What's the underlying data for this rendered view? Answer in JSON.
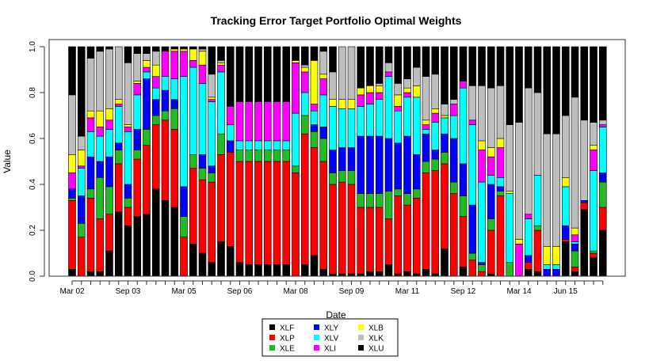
{
  "chart_data": {
    "type": "stacked_bar",
    "title": "Tracking Error Target Portfolio Optimal Weights",
    "x_label": "Date",
    "y_label": "Value",
    "categories": [
      "Mar 02",
      null,
      null,
      null,
      null,
      null,
      "Sep 03",
      null,
      null,
      null,
      null,
      null,
      "Mar 05",
      null,
      null,
      null,
      null,
      null,
      "Sep 06",
      null,
      null,
      null,
      null,
      null,
      "Mar 08",
      null,
      null,
      null,
      null,
      null,
      "Sep 09",
      null,
      null,
      null,
      null,
      null,
      "Mar 11",
      null,
      null,
      null,
      null,
      null,
      "Sep 12",
      null,
      null,
      null,
      null,
      null,
      "Mar 14",
      null,
      null,
      null,
      null,
      "Jun 15",
      null,
      null,
      null,
      null
    ],
    "ylim": [
      0,
      1
    ],
    "yticks": [
      {
        "value": 0,
        "label": "0.0"
      },
      0.2,
      0.4,
      0.6,
      0.8,
      {
        "value": 1,
        "label": "1.0"
      }
    ],
    "legend": "bottom",
    "series": [
      {
        "name": "XLF",
        "color": "#000000",
        "values": [
          0.03,
          0,
          0.02,
          0.02,
          0.11,
          0.28,
          0.22,
          0.26,
          0.27,
          0.38,
          0.33,
          0.3,
          0,
          0.14,
          0.1,
          0.06,
          0.15,
          0.13,
          0.06,
          0.05,
          0.05,
          0.05,
          0.05,
          0.05,
          0,
          0.05,
          0.09,
          0.03,
          0.01,
          0.01,
          0.01,
          0.01,
          0.02,
          0.02,
          0.05,
          0.01,
          0.02,
          0.01,
          0.03,
          0.01,
          0.12,
          0,
          0.04,
          0,
          0,
          0.01,
          0,
          0,
          0,
          0.03,
          0.02,
          0,
          0,
          0.15,
          0.02,
          0.29,
          0.08,
          0.2
        ]
      },
      {
        "name": "XLP",
        "color": "#ff0000",
        "values": [
          0.3,
          0.17,
          0.32,
          0.23,
          0.16,
          0.21,
          0.08,
          0.25,
          0.3,
          0.28,
          0.35,
          0.34,
          0.17,
          0.33,
          0.32,
          0.35,
          0.38,
          0.41,
          0.44,
          0.45,
          0.45,
          0.45,
          0.45,
          0.45,
          0.45,
          0.57,
          0.47,
          0.47,
          0.39,
          0.4,
          0.39,
          0.29,
          0.28,
          0.28,
          0.2,
          0.34,
          0.29,
          0.33,
          0.42,
          0.45,
          0.37,
          0.36,
          0.22,
          0.07,
          0.02,
          0.19,
          0.35,
          0,
          0,
          0.03,
          0.18,
          0,
          0,
          0.01,
          0.02,
          0.03,
          0.02,
          0.1
        ]
      },
      {
        "name": "XLE",
        "color": "#22bb22",
        "values": [
          0.01,
          0.06,
          0.04,
          0.18,
          0.12,
          0.06,
          0.04,
          0.04,
          0.07,
          0.04,
          0.04,
          0.09,
          0.09,
          0.06,
          0.05,
          0.04,
          0.09,
          0,
          0.05,
          0.05,
          0.05,
          0.05,
          0.05,
          0.05,
          0.03,
          0.08,
          0.07,
          0.1,
          0.05,
          0.05,
          0.06,
          0.06,
          0.06,
          0.06,
          0.12,
          0.03,
          0.05,
          0.04,
          0.05,
          0.05,
          0.05,
          0.05,
          0.09,
          0.03,
          0.03,
          0.05,
          0.02,
          0.06,
          0,
          0,
          0.02,
          0,
          0,
          0,
          0.07,
          0,
          0.01,
          0.11
        ]
      },
      {
        "name": "XLY",
        "color": "#0000ff",
        "values": [
          0.04,
          0.12,
          0.14,
          0.07,
          0.13,
          0.03,
          0.06,
          0.09,
          0.22,
          0.07,
          0.09,
          0.04,
          0.13,
          0,
          0.06,
          0.03,
          0,
          0.05,
          0,
          0,
          0,
          0,
          0,
          0,
          0,
          0,
          0.03,
          0.05,
          0.1,
          0.1,
          0.1,
          0.25,
          0.25,
          0.25,
          0.23,
          0.2,
          0.25,
          0.15,
          0.12,
          0.04,
          0.08,
          0.19,
          0.14,
          0.21,
          0.01,
          0.15,
          0.02,
          0,
          0,
          0.03,
          0,
          0.03,
          0.03,
          0.06,
          0.03,
          0.01,
          0,
          0.04
        ]
      },
      {
        "name": "XLV",
        "color": "#00ffff",
        "values": [
          0,
          0.12,
          0.11,
          0.11,
          0.12,
          0.16,
          0.23,
          0.15,
          0.03,
          0.05,
          0.06,
          0.09,
          0.48,
          0.38,
          0.31,
          0.28,
          0.27,
          0.07,
          0.04,
          0.04,
          0.04,
          0.04,
          0.04,
          0.04,
          0.23,
          0.1,
          0.06,
          0.14,
          0.19,
          0.17,
          0.17,
          0.13,
          0.14,
          0.16,
          0.27,
          0.14,
          0.17,
          0.25,
          0.02,
          0.12,
          0.07,
          0.1,
          0.33,
          0.35,
          0.35,
          0.04,
          0.04,
          0.3,
          0,
          0.16,
          0.22,
          0.02,
          0.02,
          0.17,
          0.01,
          0,
          0.35,
          0.2
        ]
      },
      {
        "name": "XLI",
        "color": "#ff00ff",
        "values": [
          0.07,
          0.01,
          0.06,
          0.04,
          0.04,
          0.01,
          0.02,
          0.05,
          0.02,
          0.05,
          0.11,
          0.12,
          0.11,
          0.03,
          0.08,
          0.01,
          0.03,
          0.08,
          0.17,
          0.17,
          0.17,
          0.17,
          0.17,
          0.17,
          0.22,
          0.09,
          0.03,
          0.07,
          0,
          0,
          0,
          0.05,
          0.05,
          0.03,
          0.02,
          0.02,
          0.02,
          0,
          0.02,
          0.04,
          0,
          0.05,
          0.03,
          0.02,
          0.14,
          0.08,
          0.13,
          0,
          0.14,
          0.02,
          0,
          0,
          0,
          0,
          0.03,
          0,
          0.09,
          0.01
        ]
      },
      {
        "name": "XLB",
        "color": "#ffff00",
        "values": [
          0.08,
          0.07,
          0.03,
          0.07,
          0.05,
          0.02,
          0.01,
          0.01,
          0.03,
          0.05,
          0,
          0.01,
          0.01,
          0.05,
          0.06,
          0.01,
          0.01,
          0,
          0,
          0,
          0,
          0,
          0,
          0,
          0.01,
          0.02,
          0.19,
          0.02,
          0.03,
          0.04,
          0.04,
          0.03,
          0.03,
          0.03,
          0,
          0.05,
          0.02,
          0.05,
          0.02,
          0.02,
          0.01,
          0,
          0,
          0,
          0.04,
          0.04,
          0.04,
          0.01,
          0.02,
          0,
          0,
          0.08,
          0.08,
          0.04,
          0.03,
          0,
          0.02,
          0
        ]
      },
      {
        "name": "XLK",
        "color": "#bebebe",
        "values": [
          0.26,
          0.06,
          0.23,
          0.26,
          0.26,
          0.23,
          0.27,
          0.12,
          0.03,
          0.06,
          0,
          0,
          0,
          0,
          0.01,
          0.1,
          0.01,
          0,
          0,
          0,
          0,
          0,
          0,
          0,
          0,
          0.01,
          0,
          0.1,
          0.12,
          0.23,
          0.23,
          0,
          0,
          0.01,
          0.04,
          0.05,
          0.04,
          0.08,
          0.19,
          0.15,
          0.05,
          0.02,
          0,
          0.15,
          0.24,
          0.26,
          0.23,
          0.29,
          0.51,
          0.55,
          0.36,
          0.49,
          0.49,
          0.27,
          0.57,
          0.35,
          0.1,
          0.02
        ]
      },
      {
        "name": "XLU",
        "color": "#000000",
        "values": [
          0.21,
          0.39,
          0.05,
          0.02,
          0.01,
          0,
          0.07,
          0.03,
          0.03,
          0.02,
          0.02,
          0.01,
          0.01,
          0.01,
          0.01,
          0.12,
          0.06,
          0.26,
          0.24,
          0.24,
          0.24,
          0.24,
          0.24,
          0.24,
          0.06,
          0.08,
          0.06,
          0.02,
          0.11,
          0,
          0,
          0.18,
          0.17,
          0.16,
          0.07,
          0.16,
          0.14,
          0.09,
          0.13,
          0.12,
          0.25,
          0.23,
          0.15,
          0.17,
          0.17,
          0.18,
          0.17,
          0.34,
          0.33,
          0.18,
          0.2,
          0.38,
          0.38,
          0.3,
          0.22,
          0.32,
          0.33,
          0.32
        ]
      }
    ]
  }
}
